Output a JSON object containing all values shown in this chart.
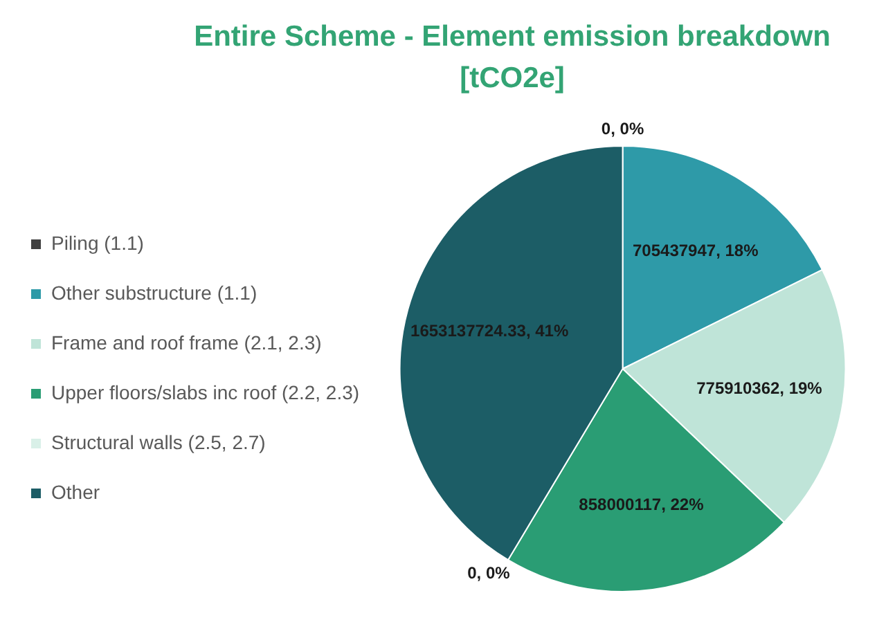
{
  "chart_data": {
    "type": "pie",
    "title": "Entire Scheme - Element emission breakdown [tCO2e]",
    "categories": [
      "Piling (1.1)",
      "Other substructure (1.1)",
      "Frame and roof frame (2.1, 2.3)",
      "Upper floors/slabs inc roof (2.2, 2.3)",
      "Structural walls (2.5, 2.7)",
      "Other"
    ],
    "values": [
      0,
      705437947,
      775910362,
      858000117,
      0,
      1653137724.33
    ],
    "colors": [
      "#404040",
      "#2e9aa8",
      "#bfe4d8",
      "#2a9d74",
      "#d9f0e8",
      "#1c5d66"
    ],
    "value_labels": [
      "0, 0%",
      "705437947, 18%",
      "775910362, 19%",
      "858000117, 22%",
      "0, 0%",
      "1653137724.33, 41%"
    ],
    "legend": "left"
  }
}
